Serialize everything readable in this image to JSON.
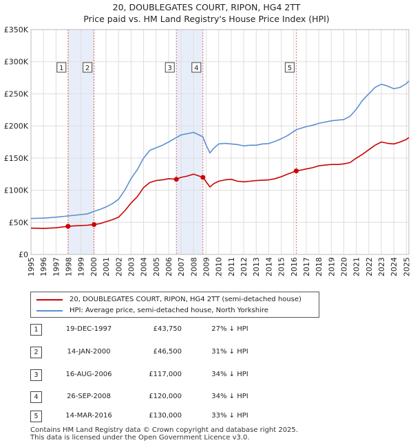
{
  "title_line1": "20, DOUBLEGATES COURT, RIPON, HG4 2TT",
  "title_line2": "Price paid vs. HM Land Registry's House Price Index (HPI)",
  "chart_data": {
    "type": "line",
    "xlim": [
      1995,
      2025.2
    ],
    "ylim": [
      0,
      350000
    ],
    "x_ticks": [
      1995,
      1996,
      1997,
      1998,
      1999,
      2000,
      2001,
      2002,
      2003,
      2004,
      2005,
      2006,
      2007,
      2008,
      2009,
      2010,
      2011,
      2012,
      2013,
      2014,
      2015,
      2016,
      2017,
      2018,
      2019,
      2020,
      2021,
      2022,
      2023,
      2024,
      2025
    ],
    "y_ticks": [
      0,
      50000,
      100000,
      150000,
      200000,
      250000,
      300000,
      350000
    ],
    "y_tick_labels": [
      "£0",
      "£50K",
      "£100K",
      "£150K",
      "£200K",
      "£250K",
      "£300K",
      "£350K"
    ],
    "grid": true,
    "series": [
      {
        "name": "20, DOUBLEGATES COURT, RIPON, HG4 2TT (semi-detached house)",
        "color": "#cc0000",
        "x": [
          1995.0,
          1996.0,
          1997.0,
          1997.96,
          1998.5,
          1999.5,
          2000.04,
          2000.5,
          2001.0,
          2001.5,
          2002.0,
          2002.5,
          2003.0,
          2003.5,
          2004.0,
          2004.5,
          2005.0,
          2005.5,
          2006.0,
          2006.62,
          2007.0,
          2007.5,
          2008.0,
          2008.74,
          2009.0,
          2009.3,
          2009.6,
          2010.0,
          2010.5,
          2011.0,
          2011.5,
          2012.0,
          2012.5,
          2013.0,
          2013.5,
          2014.0,
          2014.5,
          2015.0,
          2015.5,
          2016.2,
          2016.5,
          2017.0,
          2017.5,
          2018.0,
          2018.5,
          2019.0,
          2019.5,
          2020.0,
          2020.5,
          2021.0,
          2021.5,
          2022.0,
          2022.5,
          2023.0,
          2023.5,
          2024.0,
          2024.5,
          2025.0,
          2025.2
        ],
        "y": [
          41000,
          40500,
          41500,
          43750,
          44500,
          45500,
          46500,
          48000,
          51000,
          54000,
          58000,
          68000,
          80000,
          90000,
          104000,
          112000,
          115000,
          116000,
          118000,
          117000,
          120000,
          122000,
          125000,
          120000,
          113000,
          105000,
          110000,
          114000,
          116000,
          117000,
          114000,
          113000,
          114000,
          115000,
          115500,
          116000,
          118000,
          121000,
          125000,
          130000,
          131000,
          133000,
          135000,
          138000,
          139000,
          140000,
          140000,
          141000,
          143000,
          150000,
          156000,
          163000,
          170000,
          175000,
          173000,
          172000,
          175000,
          179000,
          182000
        ]
      },
      {
        "name": "HPI: Average price, semi-detached house, North Yorkshire",
        "color": "#5b8fd0",
        "x": [
          1995.0,
          1996.0,
          1997.0,
          1997.96,
          1998.5,
          1999.5,
          2000.04,
          2000.5,
          2001.0,
          2001.5,
          2002.0,
          2002.5,
          2003.0,
          2003.5,
          2004.0,
          2004.5,
          2005.0,
          2005.5,
          2006.0,
          2006.62,
          2007.0,
          2007.5,
          2008.0,
          2008.74,
          2009.0,
          2009.3,
          2009.6,
          2010.0,
          2010.5,
          2011.0,
          2011.5,
          2012.0,
          2012.5,
          2013.0,
          2013.5,
          2014.0,
          2014.5,
          2015.0,
          2015.5,
          2016.2,
          2016.5,
          2017.0,
          2017.5,
          2018.0,
          2018.5,
          2019.0,
          2019.5,
          2020.0,
          2020.5,
          2021.0,
          2021.5,
          2022.0,
          2022.5,
          2023.0,
          2023.5,
          2024.0,
          2024.5,
          2025.0,
          2025.2
        ],
        "y": [
          56000,
          56500,
          58000,
          59900,
          61000,
          63000,
          67000,
          70000,
          74000,
          79000,
          86000,
          100000,
          118000,
          132000,
          150000,
          162000,
          166000,
          170000,
          175000,
          182000,
          186000,
          188000,
          190000,
          183000,
          170000,
          158000,
          165000,
          172000,
          173000,
          172000,
          171000,
          169000,
          170000,
          170000,
          172000,
          172500,
          176000,
          180000,
          185000,
          194000,
          196000,
          199000,
          201000,
          204000,
          206000,
          208000,
          209000,
          210000,
          215000,
          226000,
          240000,
          250000,
          260000,
          265000,
          262000,
          258000,
          260000,
          266000,
          270000
        ]
      }
    ],
    "sale_markers": [
      {
        "label": "1",
        "x": 1997.96,
        "y": 43750
      },
      {
        "label": "2",
        "x": 2000.04,
        "y": 46500
      },
      {
        "label": "3",
        "x": 2006.62,
        "y": 117000
      },
      {
        "label": "4",
        "x": 2008.74,
        "y": 120000
      },
      {
        "label": "5",
        "x": 2016.2,
        "y": 130000
      }
    ],
    "shaded_ranges": [
      [
        1997.96,
        2000.04
      ],
      [
        2006.62,
        2008.74
      ],
      [
        2016.2,
        2016.2
      ]
    ],
    "colors": {
      "shade": "#e8eef9",
      "vline": "#e06666",
      "grid": "#dddddd",
      "marker": "#cc0000",
      "axis": "#444444"
    }
  },
  "legend": {
    "entries": [
      {
        "label": "20, DOUBLEGATES COURT, RIPON, HG4 2TT (semi-detached house)",
        "color": "#cc0000"
      },
      {
        "label": "HPI: Average price, semi-detached house, North Yorkshire",
        "color": "#5b8fd0"
      }
    ]
  },
  "sales": [
    {
      "num": "1",
      "date": "19-DEC-1997",
      "price": "£43,750",
      "hpi": "27% ↓ HPI"
    },
    {
      "num": "2",
      "date": "14-JAN-2000",
      "price": "£46,500",
      "hpi": "31% ↓ HPI"
    },
    {
      "num": "3",
      "date": "16-AUG-2006",
      "price": "£117,000",
      "hpi": "34% ↓ HPI"
    },
    {
      "num": "4",
      "date": "26-SEP-2008",
      "price": "£120,000",
      "hpi": "34% ↓ HPI"
    },
    {
      "num": "5",
      "date": "14-MAR-2016",
      "price": "£130,000",
      "hpi": "33% ↓ HPI"
    }
  ],
  "footer": {
    "line1": "Contains HM Land Registry data © Crown copyright and database right 2025.",
    "line2": "This data is licensed under the Open Government Licence v3.0."
  }
}
